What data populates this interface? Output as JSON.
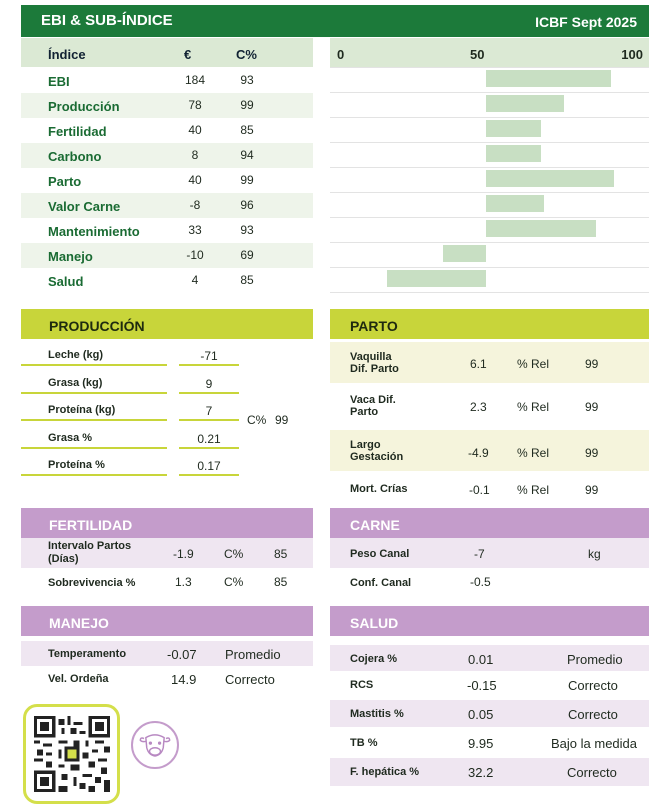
{
  "header": {
    "title": "EBI & SUB-ÍNDICE",
    "date": "ICBF Sept 2025"
  },
  "ebi_table": {
    "headers": {
      "index": "Índice",
      "euro": "€",
      "rel": "C%"
    },
    "rows": [
      {
        "name": "EBI",
        "euro": "184",
        "rel": "93"
      },
      {
        "name": "Producción",
        "euro": "78",
        "rel": "99"
      },
      {
        "name": "Fertilidad",
        "euro": "40",
        "rel": "85"
      },
      {
        "name": "Carbono",
        "euro": "8",
        "rel": "94"
      },
      {
        "name": "Parto",
        "euro": "40",
        "rel": "99"
      },
      {
        "name": "Valor Carne",
        "euro": "-8",
        "rel": "96"
      },
      {
        "name": "Mantenimiento",
        "euro": "33",
        "rel": "93"
      },
      {
        "name": "Manejo",
        "euro": "-10",
        "rel": "69"
      },
      {
        "name": "Salud",
        "euro": "4",
        "rel": "85"
      }
    ]
  },
  "chart_data": {
    "type": "bar",
    "orientation": "horizontal",
    "axis_ticks": [
      "0",
      "50",
      "100"
    ],
    "xlim": [
      0,
      100
    ],
    "baseline": 50,
    "categories": [
      "EBI",
      "Producción",
      "Fertilidad",
      "Carbono",
      "Parto",
      "Valor Carne",
      "Mantenimiento",
      "Manejo",
      "Salud"
    ],
    "values": [
      93,
      77,
      69,
      69,
      94,
      70,
      88,
      35,
      16
    ],
    "bar_color": "#c8dfc3"
  },
  "produccion": {
    "title": "PRODUCCIÓN",
    "rows": [
      {
        "label": "Leche (kg)",
        "value": "-71"
      },
      {
        "label": "Grasa (kg)",
        "value": "9"
      },
      {
        "label": "Proteína (kg)",
        "value": "7"
      },
      {
        "label": "Grasa %",
        "value": "0.21"
      },
      {
        "label": "Proteína %",
        "value": "0.17"
      }
    ],
    "rel_label": "C%",
    "rel_value": "99"
  },
  "parto": {
    "title": "PARTO",
    "rows": [
      {
        "label": "Vaquilla Dif. Parto",
        "value": "6.1",
        "unit": "% Rel",
        "rel": "99"
      },
      {
        "label": "Vaca Dif. Parto",
        "value": "2.3",
        "unit": "% Rel",
        "rel": "99"
      },
      {
        "label": "Largo Gestación",
        "value": "-4.9",
        "unit": "% Rel",
        "rel": "99"
      },
      {
        "label": "Mort. Crías",
        "value": "-0.1",
        "unit": "% Rel",
        "rel": "99"
      }
    ]
  },
  "fertilidad": {
    "title": "FERTILIDAD",
    "rows": [
      {
        "label": "Intervalo Partos (Días)",
        "value": "-1.9",
        "unit": "C%",
        "rel": "85"
      },
      {
        "label": "Sobrevivencia %",
        "value": "1.3",
        "unit": "C%",
        "rel": "85"
      }
    ]
  },
  "carne": {
    "title": "CARNE",
    "rows": [
      {
        "label": "Peso Canal",
        "value": "-7",
        "unit": "kg"
      },
      {
        "label": "Conf. Canal",
        "value": "-0.5",
        "unit": ""
      }
    ]
  },
  "manejo": {
    "title": "MANEJO",
    "rows": [
      {
        "label": "Temperamento",
        "value": "-0.07",
        "rating": "Promedio"
      },
      {
        "label": "Vel. Ordeña",
        "value": "14.9",
        "rating": "Correcto"
      }
    ]
  },
  "salud": {
    "title": "SALUD",
    "rows": [
      {
        "label": "Cojera %",
        "value": "0.01",
        "rating": "Promedio"
      },
      {
        "label": "RCS",
        "value": "-0.15",
        "rating": "Correcto"
      },
      {
        "label": "Mastitis %",
        "value": "0.05",
        "rating": "Correcto"
      },
      {
        "label": "TB %",
        "value": "9.95",
        "rating": "Bajo la medida"
      },
      {
        "label": "F. hepática %",
        "value": "32.2",
        "rating": "Correcto"
      }
    ]
  },
  "footer": {
    "qr_icon": "qr-code-icon",
    "cow_icon": "cow-icon"
  }
}
